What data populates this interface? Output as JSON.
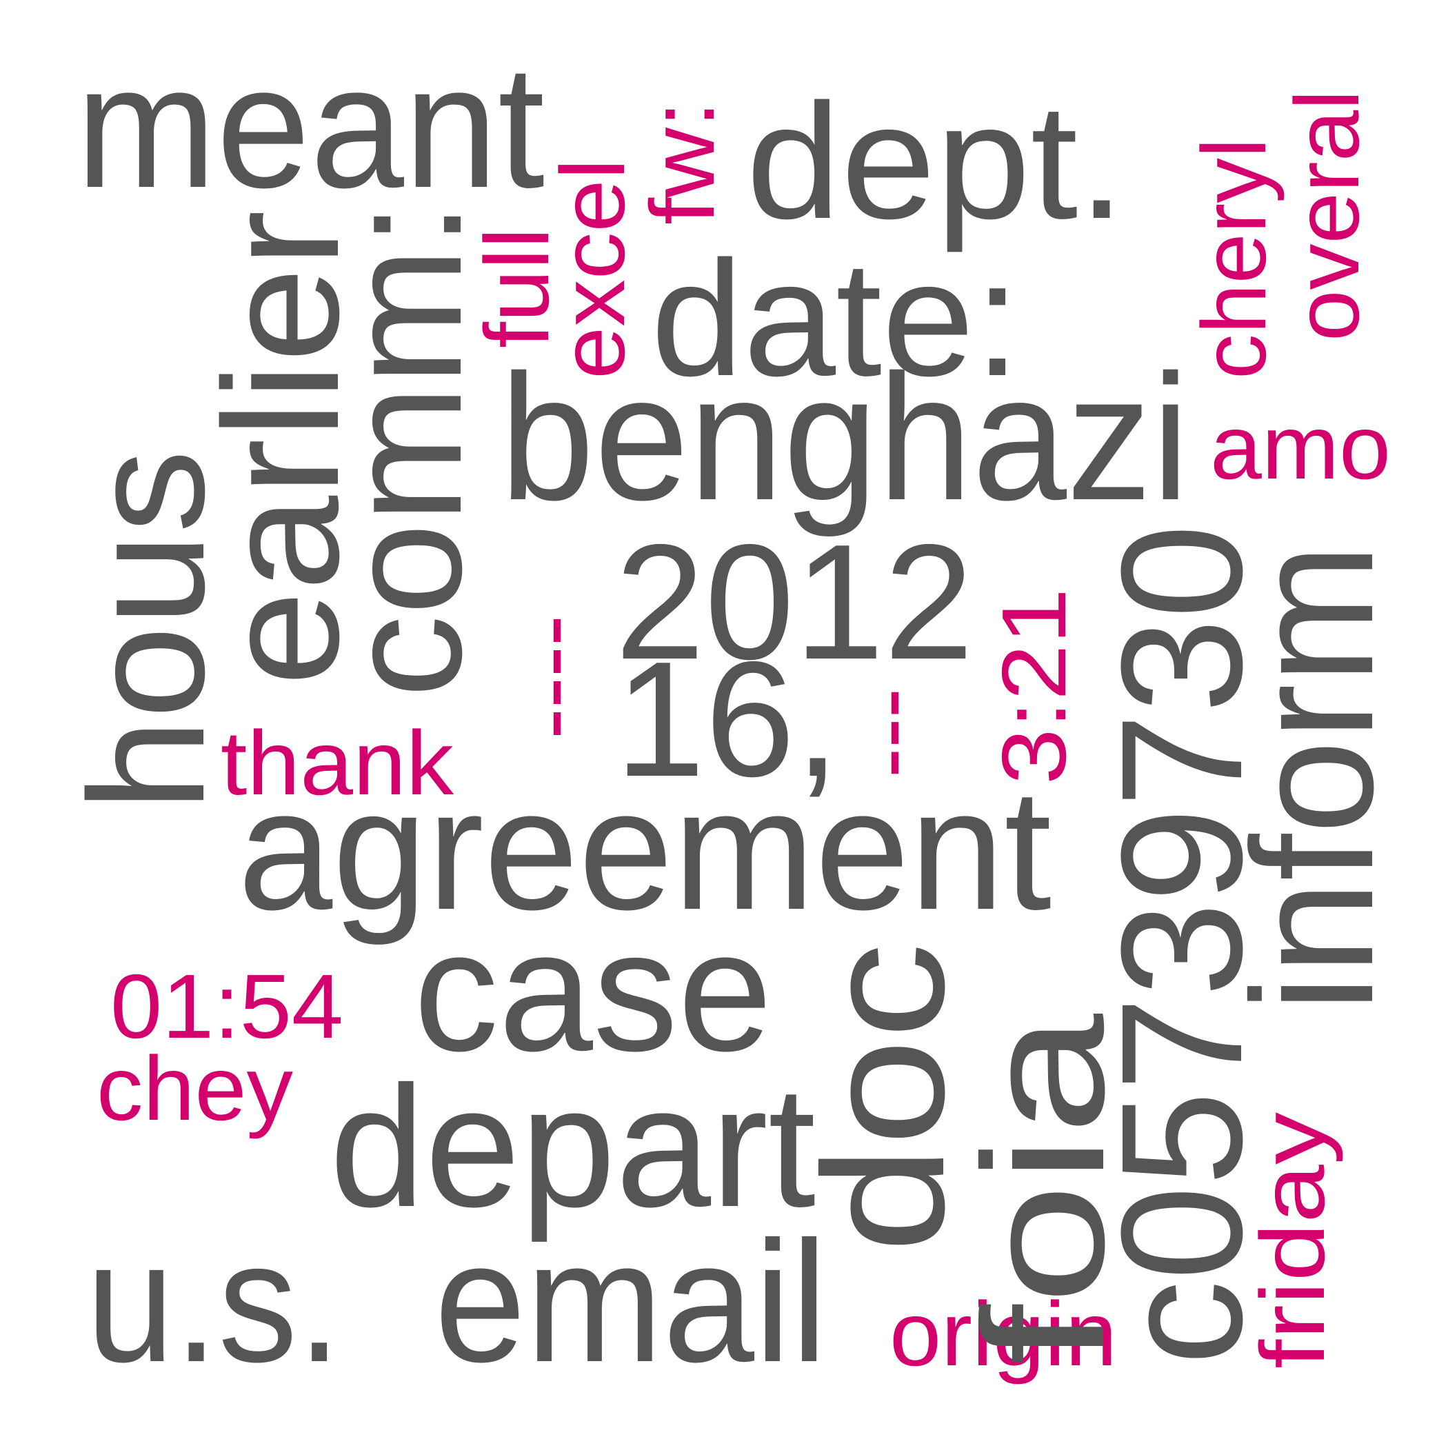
{
  "colors": {
    "primary": "#555555",
    "accent": "#d4006e",
    "background": "#ffffff"
  },
  "words": [
    {
      "text": "meant",
      "color": "primary"
    },
    {
      "text": "fw:",
      "color": "accent"
    },
    {
      "text": "dept.",
      "color": "primary"
    },
    {
      "text": "overal",
      "color": "accent"
    },
    {
      "text": "cheryl",
      "color": "accent"
    },
    {
      "text": "excel",
      "color": "accent"
    },
    {
      "text": "full",
      "color": "accent"
    },
    {
      "text": "date:",
      "color": "primary"
    },
    {
      "text": "earlier",
      "color": "primary"
    },
    {
      "text": "comm:",
      "color": "primary"
    },
    {
      "text": "benghazi",
      "color": "primary"
    },
    {
      "text": "amo",
      "color": "accent"
    },
    {
      "text": "hous",
      "color": "primary"
    },
    {
      "text": "2012",
      "color": "primary"
    },
    {
      "text": "16,",
      "color": "primary"
    },
    {
      "text": "----",
      "color": "accent"
    },
    {
      "text": "---",
      "color": "accent"
    },
    {
      "text": "3:21",
      "color": "accent"
    },
    {
      "text": "c05739730",
      "color": "primary"
    },
    {
      "text": "inform",
      "color": "primary"
    },
    {
      "text": "thank",
      "color": "accent"
    },
    {
      "text": "agreement",
      "color": "primary"
    },
    {
      "text": "01:54",
      "color": "accent"
    },
    {
      "text": "case",
      "color": "primary"
    },
    {
      "text": "chey",
      "color": "accent"
    },
    {
      "text": "doc",
      "color": "primary"
    },
    {
      "text": "depart",
      "color": "primary"
    },
    {
      "text": "foia",
      "color": "primary"
    },
    {
      "text": "friday",
      "color": "accent"
    },
    {
      "text": "u.s.",
      "color": "primary"
    },
    {
      "text": "email",
      "color": "primary"
    },
    {
      "text": "origin",
      "color": "accent"
    }
  ]
}
